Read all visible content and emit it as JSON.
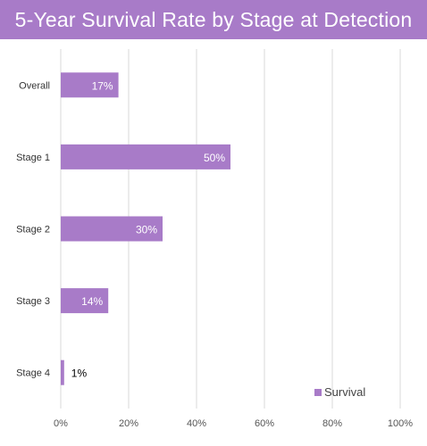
{
  "chart_data": {
    "type": "bar",
    "orientation": "horizontal",
    "title": "5-Year Survival Rate by Stage at Detection",
    "categories": [
      "Overall",
      "Stage 1",
      "Stage 2",
      "Stage 3",
      "Stage 4"
    ],
    "series": [
      {
        "name": "Survival",
        "values": [
          0.17,
          0.5,
          0.3,
          0.14,
          0.01
        ]
      }
    ],
    "data_labels": [
      "17%",
      "50%",
      "30%",
      "14%",
      "1%"
    ],
    "xlim": [
      0,
      1
    ],
    "x_ticks": [
      0,
      0.2,
      0.4,
      0.6,
      0.8,
      1.0
    ],
    "x_tick_labels": [
      "0%",
      "20%",
      "40%",
      "60%",
      "80%",
      "100%"
    ],
    "grid": "vertical",
    "legend_placement": "bottom-right",
    "colors": {
      "bar": "#a87bc8",
      "title_bar": "#a87bc8",
      "gridline": "#d9d9d9",
      "label_inside": "#ffffff",
      "label_outside": "#000000"
    }
  }
}
